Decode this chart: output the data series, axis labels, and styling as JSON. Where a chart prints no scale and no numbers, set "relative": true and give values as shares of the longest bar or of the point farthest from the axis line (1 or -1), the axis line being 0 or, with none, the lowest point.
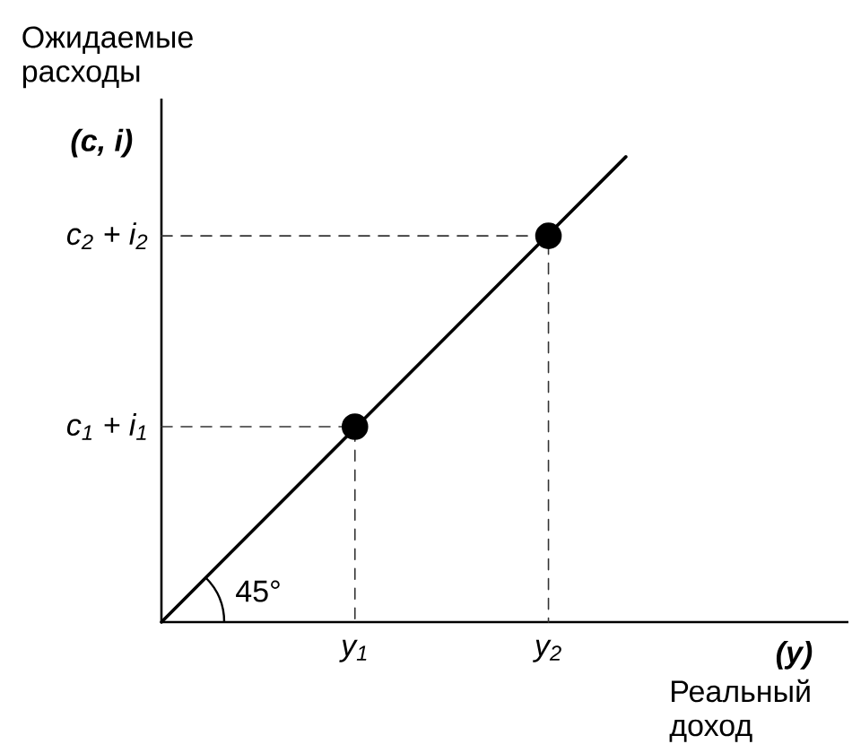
{
  "chart_data": {
    "type": "line",
    "relative": true,
    "ylabel": "Ожидаемые расходы",
    "xlabel": "Реальный доход",
    "annotations": [
      "(c, i)",
      "(y)",
      "45°",
      {
        "text": "c$_{1}$ + i$_{1}$",
        "x": 0,
        "y": 0.42
      },
      {
        "text": "c$_{2}$ + i$_{2}$",
        "x": 0,
        "y": 0.83
      }
    ],
    "xlim": [
      0,
      3.55
    ],
    "xticks": [
      {
        "value": 1,
        "label": "y$_{1}$"
      },
      {
        "value": 2,
        "label": "y$_{2}$"
      }
    ],
    "series": [
      {
        "color": "#000000",
        "marker": "none",
        "line_style": "solid",
        "x": [
          0,
          2.4
        ],
        "values": [
          0,
          1
        ]
      },
      {
        "color": "#333333",
        "marker": "none",
        "line_style": "dashed",
        "x": [
          0,
          1,
          1
        ],
        "values": [
          0.42,
          0.42,
          0
        ]
      },
      {
        "color": "#333333",
        "marker": "none",
        "line_style": "dashed",
        "x": [
          0,
          2,
          2
        ],
        "values": [
          0.83,
          0.83,
          0
        ]
      },
      {
        "type": "scatter",
        "color": "#000000",
        "marker": "circle",
        "x": [
          1,
          2
        ],
        "values": [
          0.42,
          0.83
        ]
      }
    ]
  }
}
